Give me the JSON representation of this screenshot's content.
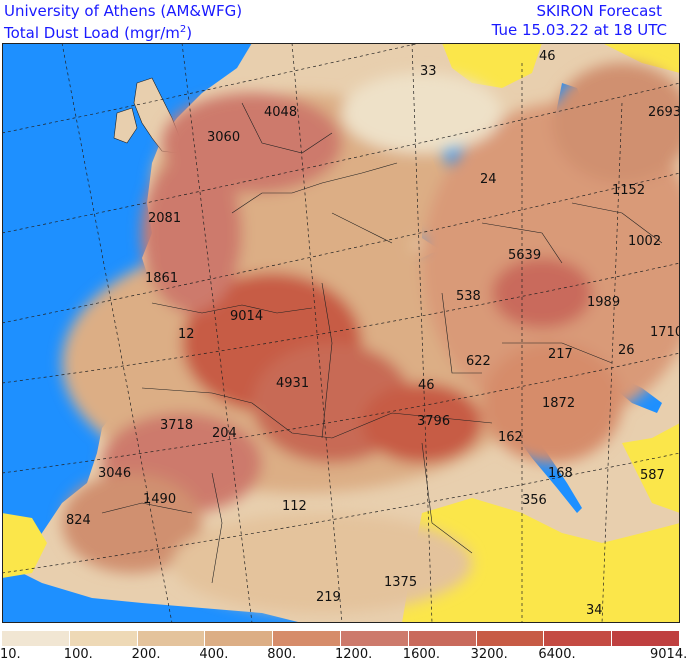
{
  "header": {
    "title_line1": "University of Athens (AM&WFG)",
    "title_line2_prefix": "Total Dust Load (mgr/m",
    "title_line2_sup": "2",
    "title_line2_suffix": ")",
    "forecast": "SKIRON Forecast",
    "datetime": "Tue 15.03.22 at 18 UTC"
  },
  "colors": {
    "sea": "#1e90ff",
    "clean": "#fbe64a",
    "low": "#eee1c8",
    "mid": "#dcae85",
    "high": "#c75b45",
    "peak": "#bf4040"
  },
  "map_labels": [
    {
      "text": "33",
      "id": "lbl-33"
    },
    {
      "text": "46",
      "id": "lbl-46"
    },
    {
      "text": "4048",
      "id": "lbl-4048"
    },
    {
      "text": "2693",
      "id": "lbl-2693"
    },
    {
      "text": "3060",
      "id": "lbl-3060"
    },
    {
      "text": "24",
      "id": "lbl-24"
    },
    {
      "text": "1152",
      "id": "lbl-1152"
    },
    {
      "text": "2081",
      "id": "lbl-2081"
    },
    {
      "text": "1002",
      "id": "lbl-1002"
    },
    {
      "text": "5639",
      "id": "lbl-5639"
    },
    {
      "text": "1861",
      "id": "lbl-1861"
    },
    {
      "text": "538",
      "id": "lbl-538"
    },
    {
      "text": "1989",
      "id": "lbl-1989"
    },
    {
      "text": "9014",
      "id": "lbl-9014"
    },
    {
      "text": "12",
      "id": "lbl-12"
    },
    {
      "text": "1710",
      "id": "lbl-1710"
    },
    {
      "text": "622",
      "id": "lbl-622"
    },
    {
      "text": "217",
      "id": "lbl-217"
    },
    {
      "text": "26",
      "id": "lbl-26"
    },
    {
      "text": "4931",
      "id": "lbl-4931"
    },
    {
      "text": "46",
      "id": "lbl-46b"
    },
    {
      "text": "1872",
      "id": "lbl-1872"
    },
    {
      "text": "3718",
      "id": "lbl-3718"
    },
    {
      "text": "3796",
      "id": "lbl-3796"
    },
    {
      "text": "204",
      "id": "lbl-204"
    },
    {
      "text": "162",
      "id": "lbl-162"
    },
    {
      "text": "3046",
      "id": "lbl-3046"
    },
    {
      "text": "168",
      "id": "lbl-168"
    },
    {
      "text": "587",
      "id": "lbl-587"
    },
    {
      "text": "1490",
      "id": "lbl-1490"
    },
    {
      "text": "356",
      "id": "lbl-356"
    },
    {
      "text": "112",
      "id": "lbl-112"
    },
    {
      "text": "824",
      "id": "lbl-824"
    },
    {
      "text": "1375",
      "id": "lbl-1375"
    },
    {
      "text": "219",
      "id": "lbl-219"
    },
    {
      "text": "34",
      "id": "lbl-34"
    }
  ],
  "legend": {
    "colors": [
      "#f1e6d3",
      "#eed9b6",
      "#e4c39c",
      "#dcae85",
      "#d68c6a",
      "#cd7a6c",
      "#c96a5c",
      "#c75b45",
      "#c44b43",
      "#bf4040"
    ],
    "ticks": [
      "10.",
      "100.",
      "200.",
      "400.",
      "800.",
      "1200.",
      "1600.",
      "3200.",
      "6400.",
      "9014."
    ]
  }
}
